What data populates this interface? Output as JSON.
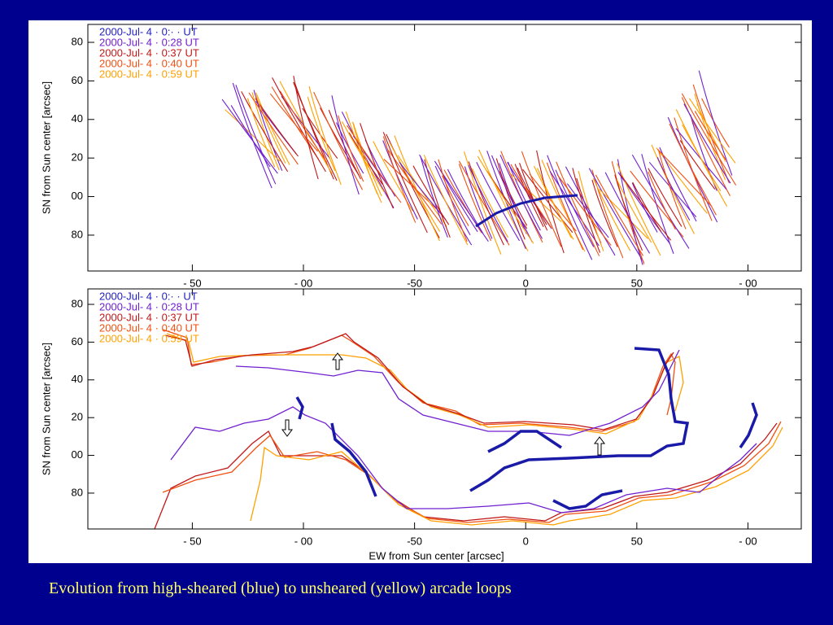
{
  "panels": [
    {
      "y_label": "SN from Sun center [arcsec]",
      "xlim": [
        -197,
        124
      ],
      "ylim": [
        61.4,
        189.3
      ],
      "xticks": [
        {
          "value": -150,
          "label": "- 50"
        },
        {
          "value": -100,
          "label": "- 00"
        },
        -50,
        0,
        50,
        {
          "value": 100,
          "label": "- 00"
        }
      ],
      "yticks": [
        {
          "value": 180,
          "label": "80"
        },
        {
          "value": 160,
          "label": "60"
        },
        {
          "value": 140,
          "label": "40"
        },
        {
          "value": 120,
          "label": "20"
        },
        {
          "value": 100,
          "label": "00"
        },
        80
      ],
      "legend": [
        {
          "name": "2000-Jul- 4 · 0:· · UT",
          "color": "#2020c0"
        },
        {
          "name": "2000-Jul- 4 · 0:28 UT",
          "color": "#7020d0"
        },
        {
          "name": "2000-Jul- 4 · 0:37 UT",
          "color": "#c01818"
        },
        {
          "name": "2000-Jul- 4 · 0:40 UT",
          "color": "#f05010"
        },
        {
          "name": "2000-Jul- 4 · 0:59 UT",
          "color": "#ffa000"
        }
      ]
    },
    {
      "y_label": "SN from Sun center [arcsec]",
      "x_label": "EW from Sun center [arcsec]",
      "xlim": [
        -197,
        124
      ],
      "ylim": [
        61.0,
        188.2
      ],
      "xticks": [
        {
          "value": -150,
          "label": "- 50"
        },
        {
          "value": -100,
          "label": "- 00"
        },
        -50,
        0,
        50,
        {
          "value": 100,
          "label": "- 00"
        }
      ],
      "yticks": [
        {
          "value": 180,
          "label": "80"
        },
        {
          "value": 160,
          "label": "60"
        },
        {
          "value": 140,
          "label": "40"
        },
        {
          "value": 120,
          "label": "20"
        },
        {
          "value": 100,
          "label": "00"
        },
        80
      ],
      "legend": [
        {
          "name": "2000-Jul- 4 · 0:· · UT",
          "color": "#2020c0"
        },
        {
          "name": "2000-Jul- 4 · 0:28 UT",
          "color": "#7020d0"
        },
        {
          "name": "2000-Jul- 4 · 0:37 UT",
          "color": "#c01818"
        },
        {
          "name": "2000-Jul- 4 · 0:40 UT",
          "color": "#f05010"
        },
        {
          "name": "2000-Jul- 4 · 0:59 UT",
          "color": "#ffa000"
        }
      ]
    }
  ],
  "caption": "Evolution from high-sheared (blue) to unsheared (yellow) arcade loops"
}
